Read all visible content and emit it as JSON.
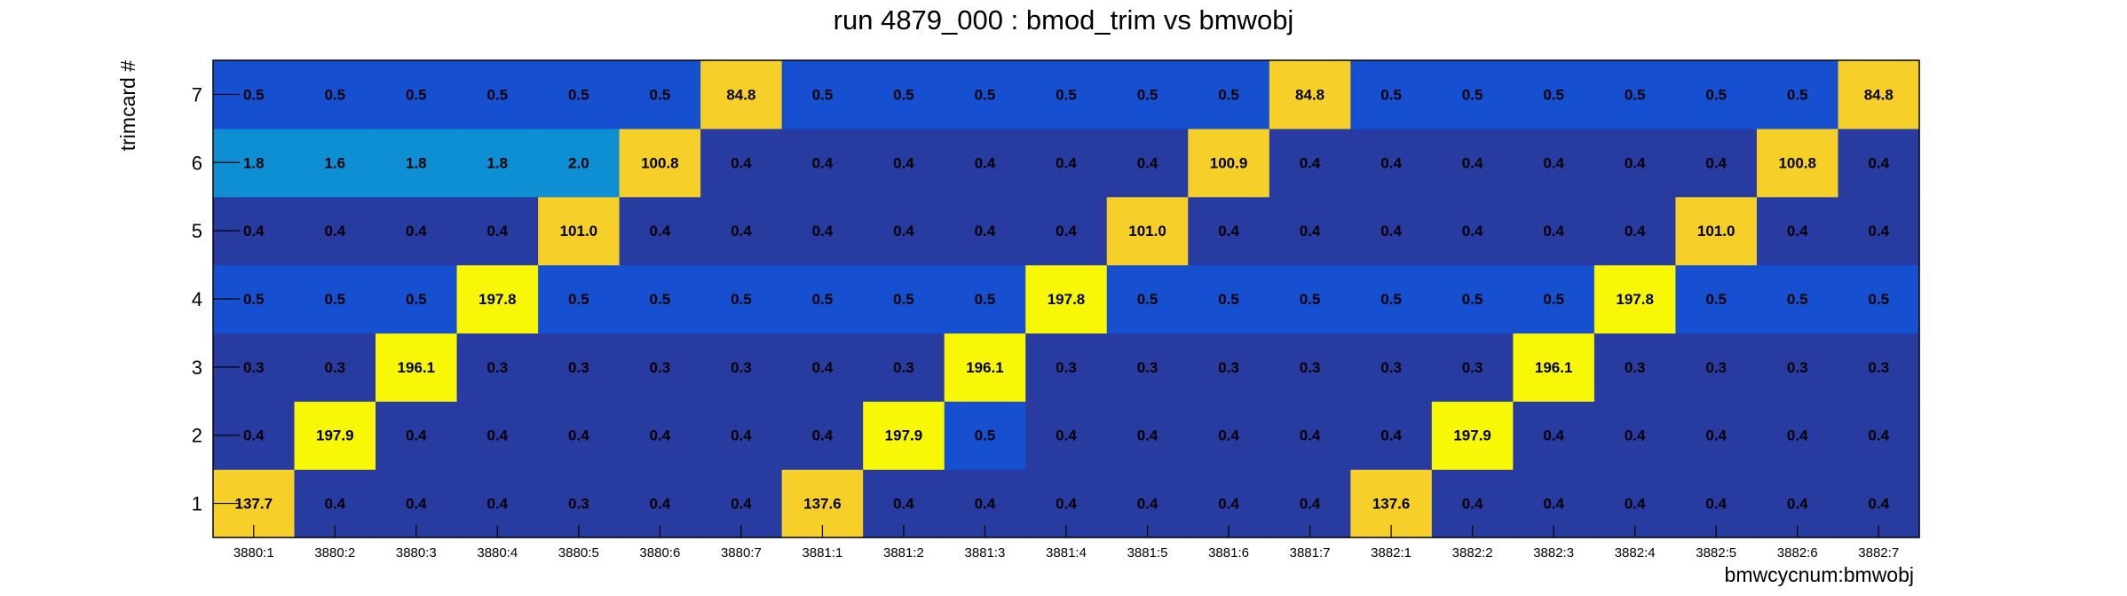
{
  "chart_data": {
    "type": "heatmap",
    "title": "run 4879_000 : bmod_trim vs bmwobj",
    "xlabel": "bmwcycnum:bmwobj",
    "ylabel": "trimcard #",
    "x_categories": [
      "3880:1",
      "3880:2",
      "3880:3",
      "3880:4",
      "3880:5",
      "3880:6",
      "3880:7",
      "3881:1",
      "3881:2",
      "3881:3",
      "3881:4",
      "3881:5",
      "3881:6",
      "3881:7",
      "3882:1",
      "3882:2",
      "3882:3",
      "3882:4",
      "3882:5",
      "3882:6",
      "3882:7"
    ],
    "y_categories": [
      "1",
      "2",
      "3",
      "4",
      "5",
      "6",
      "7"
    ],
    "cell_labels": [
      [
        "137.7",
        "0.4",
        "0.4",
        "0.4",
        "0.3",
        "0.4",
        "0.4",
        "137.6",
        "0.4",
        "0.4",
        "0.4",
        "0.4",
        "0.4",
        "0.4",
        "137.6",
        "0.4",
        "0.4",
        "0.4",
        "0.4",
        "0.4",
        "0.4"
      ],
      [
        "0.4",
        "197.9",
        "0.4",
        "0.4",
        "0.4",
        "0.4",
        "0.4",
        "0.4",
        "197.9",
        "0.5",
        "0.4",
        "0.4",
        "0.4",
        "0.4",
        "0.4",
        "197.9",
        "0.4",
        "0.4",
        "0.4",
        "0.4",
        "0.4"
      ],
      [
        "0.3",
        "0.3",
        "196.1",
        "0.3",
        "0.3",
        "0.3",
        "0.3",
        "0.4",
        "0.3",
        "196.1",
        "0.3",
        "0.3",
        "0.3",
        "0.3",
        "0.3",
        "0.3",
        "196.1",
        "0.3",
        "0.3",
        "0.3",
        "0.3"
      ],
      [
        "0.5",
        "0.5",
        "0.5",
        "197.8",
        "0.5",
        "0.5",
        "0.5",
        "0.5",
        "0.5",
        "0.5",
        "197.8",
        "0.5",
        "0.5",
        "0.5",
        "0.5",
        "0.5",
        "0.5",
        "197.8",
        "0.5",
        "0.5",
        "0.5"
      ],
      [
        "0.4",
        "0.4",
        "0.4",
        "0.4",
        "101.0",
        "0.4",
        "0.4",
        "0.4",
        "0.4",
        "0.4",
        "0.4",
        "101.0",
        "0.4",
        "0.4",
        "0.4",
        "0.4",
        "0.4",
        "0.4",
        "101.0",
        "0.4",
        "0.4"
      ],
      [
        "1.8",
        "1.6",
        "1.8",
        "1.8",
        "2.0",
        "100.8",
        "0.4",
        "0.4",
        "0.4",
        "0.4",
        "0.4",
        "0.4",
        "100.9",
        "0.4",
        "0.4",
        "0.4",
        "0.4",
        "0.4",
        "0.4",
        "100.8",
        "0.4"
      ],
      [
        "0.5",
        "0.5",
        "0.5",
        "0.5",
        "0.5",
        "0.5",
        "84.8",
        "0.5",
        "0.5",
        "0.5",
        "0.5",
        "0.5",
        "0.5",
        "84.8",
        "0.5",
        "0.5",
        "0.5",
        "0.5",
        "0.5",
        "0.5",
        "84.8"
      ]
    ],
    "colors": {
      "low": "#273ba1",
      "mid_low": "#1650d0",
      "mid": "#0e8fd3",
      "high": "#f6cf28",
      "max": "#f8f706"
    }
  }
}
